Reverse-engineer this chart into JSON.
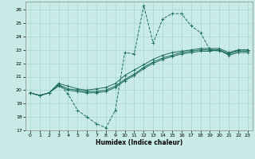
{
  "xlabel": "Humidex (Indice chaleur)",
  "bg_color": "#c8ebe8",
  "grid_color": "#a8d8d0",
  "line_color": "#1a6b5a",
  "xlim": [
    -0.5,
    23.5
  ],
  "ylim": [
    17,
    26.6
  ],
  "xticks": [
    0,
    1,
    2,
    3,
    4,
    5,
    6,
    7,
    8,
    9,
    10,
    11,
    12,
    13,
    14,
    15,
    16,
    17,
    18,
    19,
    20,
    21,
    22,
    23
  ],
  "yticks": [
    17,
    18,
    19,
    20,
    21,
    22,
    23,
    24,
    25,
    26
  ],
  "curves": [
    {
      "x": [
        0,
        1,
        2,
        3,
        4,
        5,
        6,
        7,
        8,
        9,
        10,
        11,
        12,
        13,
        14,
        15,
        16,
        17,
        18,
        19,
        20,
        21,
        22,
        23
      ],
      "y": [
        19.8,
        19.6,
        19.8,
        20.5,
        19.7,
        18.5,
        18.0,
        17.5,
        17.2,
        18.5,
        22.8,
        22.7,
        26.3,
        23.5,
        25.3,
        25.7,
        25.7,
        24.8,
        24.3,
        23.0,
        22.9,
        22.7,
        23.0,
        23.0
      ],
      "dashed": true,
      "marker": "+"
    },
    {
      "x": [
        0,
        1,
        2,
        3,
        4,
        5,
        6,
        7,
        8,
        9,
        10,
        11,
        12,
        13,
        14,
        15,
        16,
        17,
        18,
        19,
        20,
        21,
        22,
        23
      ],
      "y": [
        19.8,
        19.6,
        19.8,
        20.5,
        20.3,
        20.1,
        20.0,
        20.1,
        20.2,
        20.5,
        21.1,
        21.5,
        21.9,
        22.3,
        22.6,
        22.8,
        22.9,
        23.0,
        23.1,
        23.1,
        23.1,
        22.8,
        23.0,
        23.0
      ],
      "dashed": false,
      "marker": "+"
    },
    {
      "x": [
        0,
        1,
        2,
        3,
        4,
        5,
        6,
        7,
        8,
        9,
        10,
        11,
        12,
        13,
        14,
        15,
        16,
        17,
        18,
        19,
        20,
        21,
        22,
        23
      ],
      "y": [
        19.8,
        19.6,
        19.8,
        20.4,
        20.1,
        20.0,
        19.9,
        19.9,
        20.0,
        20.3,
        20.8,
        21.2,
        21.7,
        22.1,
        22.4,
        22.6,
        22.8,
        22.9,
        23.0,
        23.0,
        23.0,
        22.7,
        22.9,
        22.9
      ],
      "dashed": false,
      "marker": "+"
    },
    {
      "x": [
        0,
        1,
        2,
        3,
        4,
        5,
        6,
        7,
        8,
        9,
        10,
        11,
        12,
        13,
        14,
        15,
        16,
        17,
        18,
        19,
        20,
        21,
        22,
        23
      ],
      "y": [
        19.8,
        19.6,
        19.8,
        20.3,
        20.0,
        19.9,
        19.8,
        19.8,
        19.9,
        20.2,
        20.7,
        21.1,
        21.6,
        22.0,
        22.3,
        22.5,
        22.7,
        22.8,
        22.9,
        22.9,
        23.0,
        22.6,
        22.8,
        22.8
      ],
      "dashed": false,
      "marker": "+"
    }
  ]
}
